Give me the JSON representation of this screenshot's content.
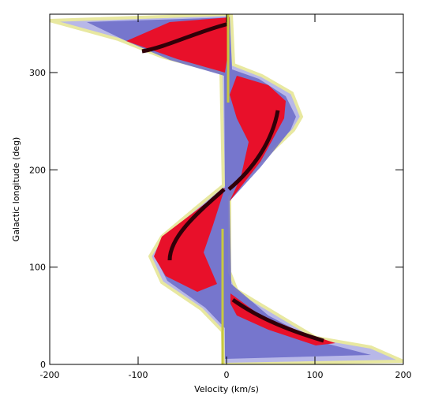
{
  "chart_data": {
    "type": "heatmap-image",
    "x_label": "Velocity (km/s)",
    "y_label": "Galactic longitude (deg)",
    "xlim": [
      -200,
      200
    ],
    "xticks": [
      -200,
      -100,
      0,
      100,
      200
    ],
    "ylim": [
      0,
      360
    ],
    "yticks": [
      0,
      100,
      200,
      300
    ]
  }
}
